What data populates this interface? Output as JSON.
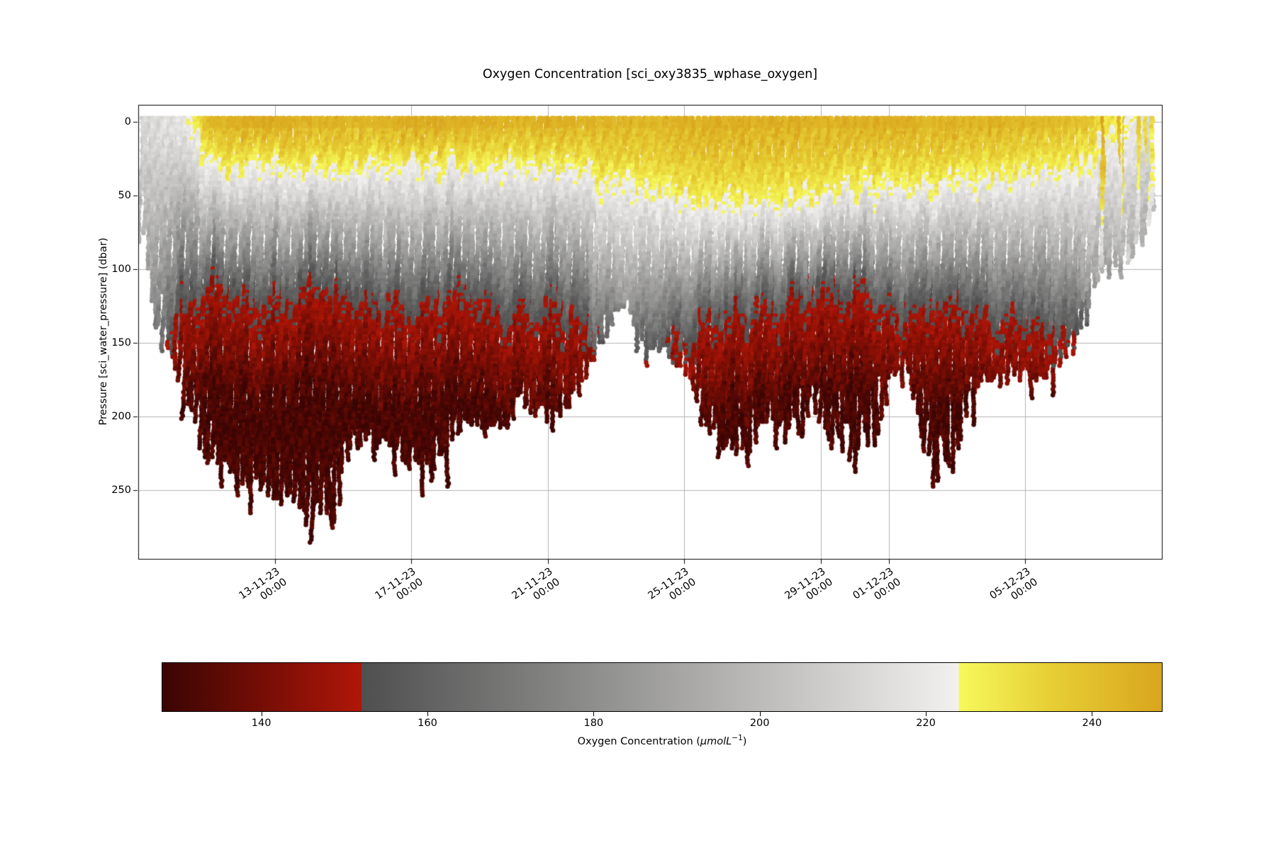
{
  "chart_data": {
    "type": "scatter",
    "title": "Oxygen Concentration [sci_oxy3835_wphase_oxygen]",
    "x_axis": {
      "start": "09-11-23 00:00",
      "span_days": 30,
      "ticks": [
        {
          "day": 4,
          "date": "13-11-23",
          "time": "00:00"
        },
        {
          "day": 8,
          "date": "17-11-23",
          "time": "00:00"
        },
        {
          "day": 12,
          "date": "21-11-23",
          "time": "00:00"
        },
        {
          "day": 16,
          "date": "25-11-23",
          "time": "00:00"
        },
        {
          "day": 20,
          "date": "29-11-23",
          "time": "00:00"
        },
        {
          "day": 22,
          "date": "01-12-23",
          "time": "00:00"
        },
        {
          "day": 26,
          "date": "05-12-23",
          "time": "00:00"
        }
      ]
    },
    "y_axis": {
      "label": "Pressure [sci_water_pressure] (dbar)",
      "ticks": [
        0,
        50,
        100,
        150,
        200,
        250
      ],
      "range": [
        -12,
        296
      ],
      "inverted": true,
      "grid": true
    },
    "colorbar": {
      "label_prefix": "Oxygen Concentration (",
      "label_unit": "µmolL",
      "label_exp": "−1",
      "label_suffix": ")",
      "vmin": 128,
      "vmax": 248.5,
      "ticks": [
        140,
        160,
        180,
        200,
        220,
        240
      ],
      "segments": [
        {
          "from": 128,
          "to": 152,
          "start": "#3a0503",
          "end": "#b01608"
        },
        {
          "from": 152,
          "to": 224,
          "start": "#4f4f4f",
          "end": "#f2f1ef"
        },
        {
          "from": 224,
          "to": 248.5,
          "start": "#f6f95c",
          "mid": "#e7cf35",
          "end": "#d9a51d"
        }
      ]
    },
    "deep_oxygen_umol_L": 131,
    "marker_diameter_px": 7,
    "profiles": {
      "columns": [
        "day",
        "max_depth_dbar",
        "oxycline_224_depth_dbar",
        "oxycline_152_depth_dbar",
        "surface_oxygen_umol_L"
      ],
      "points": [
        [
          0.15,
          70,
          0,
          210,
          213
        ],
        [
          0.5,
          115,
          0,
          210,
          214
        ],
        [
          0.9,
          150,
          0,
          165,
          216
        ],
        [
          1.3,
          168,
          0,
          132,
          218
        ],
        [
          1.7,
          195,
          6,
          120,
          226
        ],
        [
          2.1,
          220,
          26,
          112,
          240
        ],
        [
          2.6,
          232,
          33,
          116,
          243
        ],
        [
          3.1,
          240,
          28,
          120,
          244
        ],
        [
          3.6,
          246,
          26,
          121,
          245
        ],
        [
          4.1,
          250,
          30,
          124,
          244
        ],
        [
          4.6,
          252,
          34,
          118,
          243
        ],
        [
          5.0,
          258,
          30,
          114,
          243
        ],
        [
          5.38,
          284,
          30,
          112,
          243
        ],
        [
          5.7,
          242,
          32,
          116,
          243
        ],
        [
          6.1,
          216,
          34,
          120,
          242
        ],
        [
          6.6,
          210,
          30,
          118,
          242
        ],
        [
          7.1,
          212,
          28,
          122,
          243
        ],
        [
          7.6,
          216,
          30,
          126,
          243
        ],
        [
          8.1,
          230,
          32,
          128,
          244
        ],
        [
          8.5,
          234,
          30,
          124,
          245
        ],
        [
          9.0,
          212,
          28,
          120,
          244
        ],
        [
          9.4,
          196,
          30,
          118,
          243
        ],
        [
          9.9,
          202,
          32,
          122,
          242
        ],
        [
          10.4,
          214,
          30,
          126,
          242
        ],
        [
          10.9,
          192,
          28,
          130,
          242
        ],
        [
          11.4,
          186,
          30,
          134,
          242
        ],
        [
          11.9,
          198,
          32,
          130,
          243
        ],
        [
          12.4,
          194,
          30,
          128,
          243
        ],
        [
          12.9,
          178,
          32,
          134,
          242
        ],
        [
          13.3,
          156,
          36,
          148,
          242
        ],
        [
          13.8,
          136,
          40,
          162,
          241
        ],
        [
          14.3,
          122,
          42,
          172,
          241
        ],
        [
          14.8,
          150,
          44,
          168,
          241
        ],
        [
          15.3,
          156,
          46,
          162,
          242
        ],
        [
          15.8,
          152,
          50,
          152,
          242
        ],
        [
          16.2,
          172,
          52,
          150,
          243
        ],
        [
          16.7,
          202,
          55,
          142,
          244
        ],
        [
          17.2,
          216,
          56,
          136,
          244
        ],
        [
          17.7,
          226,
          55,
          132,
          244
        ],
        [
          18.2,
          192,
          56,
          128,
          243
        ],
        [
          18.7,
          202,
          55,
          126,
          243
        ],
        [
          19.2,
          212,
          52,
          122,
          243
        ],
        [
          19.6,
          178,
          50,
          120,
          243
        ],
        [
          20.0,
          186,
          50,
          118,
          243
        ],
        [
          20.4,
          220,
          48,
          116,
          243
        ],
        [
          20.8,
          182,
          46,
          118,
          243
        ],
        [
          21.3,
          228,
          45,
          120,
          243
        ],
        [
          21.8,
          172,
          44,
          125,
          243
        ],
        [
          22.2,
          176,
          44,
          128,
          243
        ],
        [
          22.6,
          158,
          43,
          130,
          242
        ],
        [
          23.0,
          192,
          42,
          128,
          242
        ],
        [
          23.6,
          248,
          42,
          122,
          242
        ],
        [
          24.1,
          186,
          40,
          126,
          242
        ],
        [
          24.6,
          176,
          38,
          132,
          242
        ],
        [
          25.1,
          170,
          36,
          135,
          242
        ],
        [
          25.6,
          166,
          35,
          138,
          241
        ],
        [
          26.1,
          170,
          34,
          138,
          241
        ],
        [
          26.6,
          172,
          33,
          140,
          240
        ],
        [
          27.1,
          160,
          32,
          145,
          239
        ],
        [
          27.5,
          142,
          30,
          152,
          238
        ],
        [
          27.9,
          108,
          26,
          172,
          236
        ],
        [
          28.4,
          96,
          22,
          180,
          232
        ],
        [
          29.0,
          92,
          16,
          183,
          227
        ],
        [
          29.4,
          80,
          10,
          184,
          222
        ],
        [
          29.75,
          62,
          4,
          184,
          216
        ]
      ]
    }
  }
}
